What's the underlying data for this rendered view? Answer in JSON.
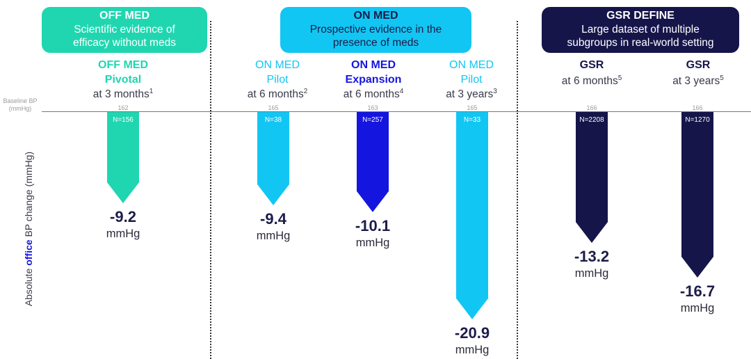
{
  "colors": {
    "off_med": "#20d6b0",
    "on_med_pilot": "#12c6f3",
    "on_med_expansion": "#1515e0",
    "gsr": "#16154a",
    "text_dark": "#1c1c4a"
  },
  "groups": [
    {
      "title": "OFF MED",
      "desc1": "Scientific evidence of",
      "desc2": "efficacy without meds"
    },
    {
      "title": "ON MED",
      "desc1": "Prospective evidence in the",
      "desc2": "presence of meds"
    },
    {
      "title": "GSR DEFINE",
      "desc1": "Large dataset of multiple",
      "desc2": "subgroups in real-world setting"
    }
  ],
  "baseline_label": {
    "line1": "Baseline BP",
    "line2": "(mmHg)"
  },
  "ylabel": {
    "prefix": "Absolute ",
    "emphasis": "office",
    "suffix": " BP change (mmHg)"
  },
  "unit": "mmHg",
  "chart_data": {
    "type": "bar",
    "title": "",
    "ylabel": "Absolute office BP change (mmHg)",
    "unit": "mmHg",
    "ylim": [
      -22,
      0
    ],
    "categories": [
      "OFF MED Pivotal",
      "ON MED Pilot",
      "ON MED Expansion",
      "ON MED Pilot",
      "GSR",
      "GSR"
    ],
    "bars": [
      {
        "line1": "OFF MED",
        "line2": "Pivotal",
        "period": "at 3 months",
        "ref": "1",
        "baseline": "162",
        "n": "N=156",
        "value": -9.2,
        "value_label": "-9.2",
        "color": "#20d6b0",
        "group": "OFF MED"
      },
      {
        "line1": "ON MED",
        "line2": "Pilot",
        "period": "at 6 months",
        "ref": "2",
        "baseline": "165",
        "n": "N=38",
        "value": -9.4,
        "value_label": "-9.4",
        "color": "#12c6f3",
        "group": "ON MED"
      },
      {
        "line1": "ON MED",
        "line2": "Expansion",
        "period": "at 6 months",
        "ref": "4",
        "baseline": "163",
        "n": "N=257",
        "value": -10.1,
        "value_label": "-10.1",
        "color": "#1515e0",
        "group": "ON MED"
      },
      {
        "line1": "ON MED",
        "line2": "Pilot",
        "period": "at 3 years",
        "ref": "3",
        "baseline": "165",
        "n": "N=33",
        "value": -20.9,
        "value_label": "-20.9",
        "color": "#12c6f3",
        "group": "ON MED"
      },
      {
        "line1": "GSR",
        "line2": "",
        "period": "at 6 months",
        "ref": "5",
        "baseline": "166",
        "n": "N=2208",
        "value": -13.2,
        "value_label": "-13.2",
        "color": "#16154a",
        "group": "GSR DEFINE"
      },
      {
        "line1": "GSR",
        "line2": "",
        "period": "at 3 years",
        "ref": "5",
        "baseline": "166",
        "n": "N=1270",
        "value": -16.7,
        "value_label": "-16.7",
        "color": "#16154a",
        "group": "GSR DEFINE"
      }
    ]
  }
}
